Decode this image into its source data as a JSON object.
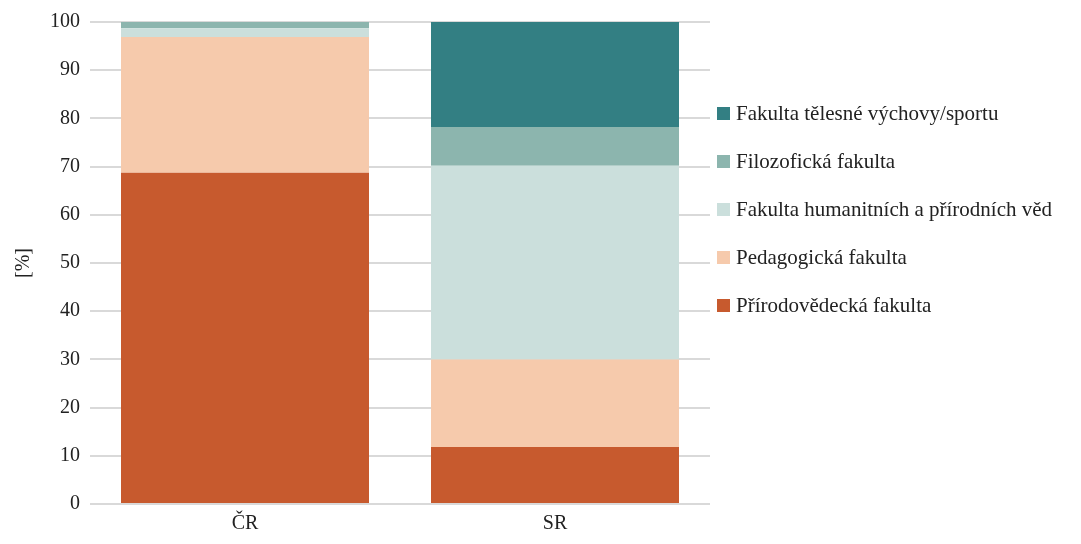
{
  "chart_data": {
    "type": "bar",
    "stacked": true,
    "ylabel": "[%]",
    "categories": [
      "ČR",
      "SR"
    ],
    "series": [
      {
        "name": "Přírodovědecká fakulta",
        "color": "#c75a2e",
        "values": [
          68.7,
          11.8
        ]
      },
      {
        "name": "Pedagogická fakulta",
        "color": "#f6caac",
        "values": [
          28.2,
          18.2
        ]
      },
      {
        "name": "Fakulta humanitních a přírodních věd",
        "color": "#cbdfdc",
        "values": [
          1.8,
          40.2
        ]
      },
      {
        "name": "Filozofická fakulta",
        "color": "#8cb5ae",
        "values": [
          1.3,
          8.0
        ]
      },
      {
        "name": "Fakulta tělesné výchovy/sportu",
        "color": "#337f83",
        "values": [
          0,
          21.8
        ]
      }
    ],
    "ylim": [
      0,
      100
    ],
    "yticks": [
      0,
      10,
      20,
      30,
      40,
      50,
      60,
      70,
      80,
      90,
      100
    ],
    "grid": "y",
    "legend": "right"
  }
}
